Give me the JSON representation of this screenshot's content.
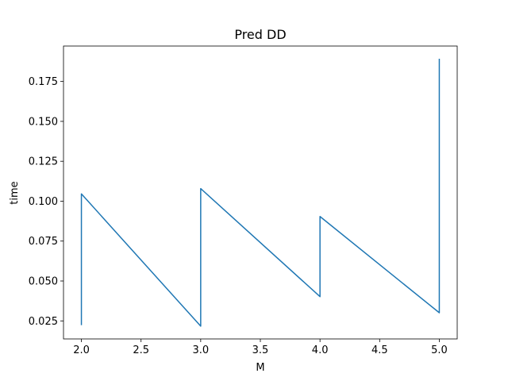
{
  "chart_data": {
    "type": "line",
    "title": "Pred DD",
    "xlabel": "M",
    "ylabel": "time",
    "xlim": [
      1.85,
      5.15
    ],
    "ylim": [
      0.0137,
      0.1972
    ],
    "xticks": [
      2.0,
      2.5,
      3.0,
      3.5,
      4.0,
      4.5,
      5.0
    ],
    "xtick_labels": [
      "2.0",
      "2.5",
      "3.0",
      "3.5",
      "4.0",
      "4.5",
      "5.0"
    ],
    "yticks": [
      0.025,
      0.05,
      0.075,
      0.1,
      0.125,
      0.15,
      0.175
    ],
    "ytick_labels": [
      "0.025",
      "0.050",
      "0.075",
      "0.100",
      "0.125",
      "0.150",
      "0.175"
    ],
    "grid": false,
    "series": [
      {
        "color": "#1f77b4",
        "x": [
          2.0,
          2.0,
          3.0,
          3.0,
          4.0,
          4.0,
          5.0,
          5.0
        ],
        "y": [
          0.0227,
          0.1046,
          0.0217,
          0.1079,
          0.0402,
          0.0904,
          0.0301,
          0.1889
        ]
      }
    ]
  }
}
